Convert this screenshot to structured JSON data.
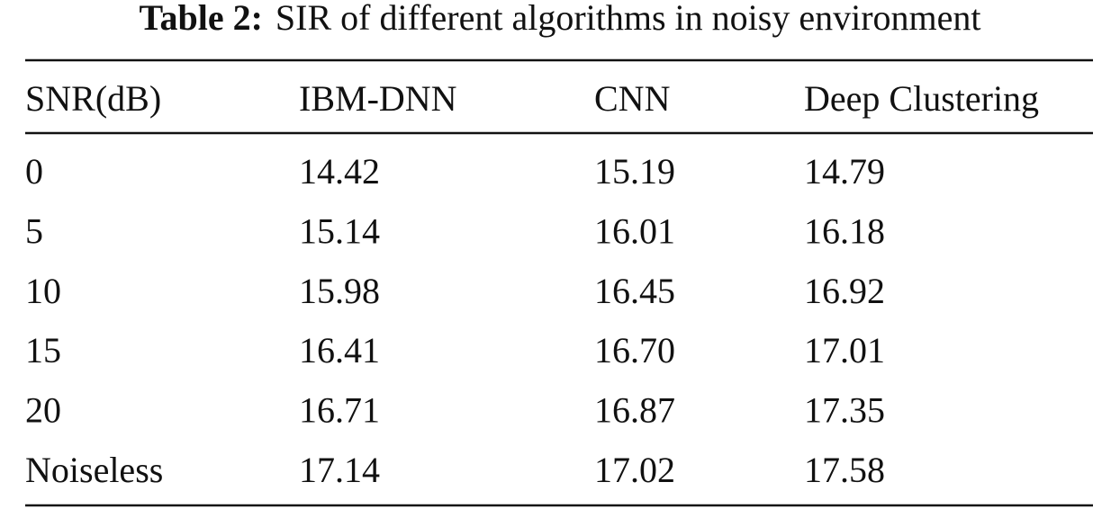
{
  "caption": {
    "label": "Table 2:",
    "text": "SIR of different algorithms in noisy environment"
  },
  "table": {
    "header": [
      "SNR(dB)",
      "IBM-DNN",
      "CNN",
      "Deep Clustering"
    ],
    "rows": [
      [
        "0",
        "14.42",
        "15.19",
        "14.79"
      ],
      [
        "5",
        "15.14",
        "16.01",
        "16.18"
      ],
      [
        "10",
        "15.98",
        "16.45",
        "16.92"
      ],
      [
        "15",
        "16.41",
        "16.70",
        "17.01"
      ],
      [
        "20",
        "16.71",
        "16.87",
        "17.35"
      ],
      [
        "Noiseless",
        "17.14",
        "17.02",
        "17.58"
      ]
    ]
  }
}
